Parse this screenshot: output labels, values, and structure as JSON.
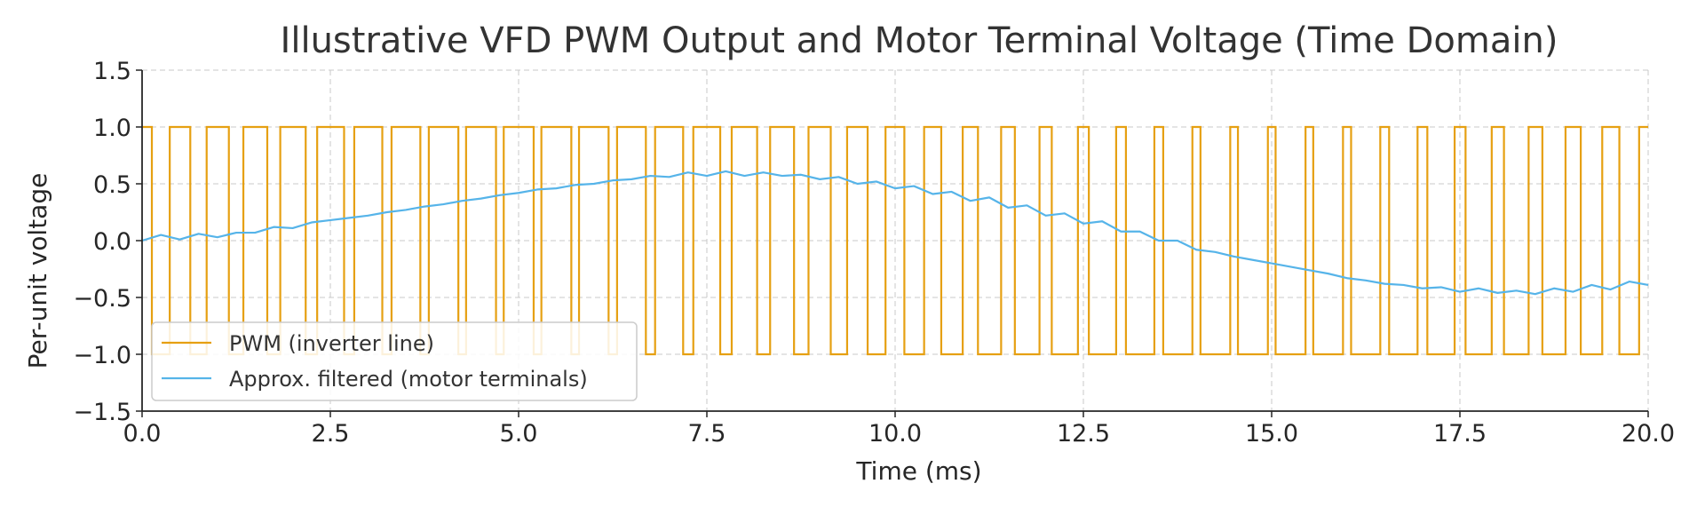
{
  "chart_data": {
    "type": "line",
    "title": "Illustrative VFD PWM Output and Motor Terminal Voltage (Time Domain)",
    "xlabel": "Time (ms)",
    "ylabel": "Per-unit voltage",
    "xlim": [
      0,
      20
    ],
    "ylim": [
      -1.5,
      1.5
    ],
    "x_ticks": [
      "0.0",
      "2.5",
      "5.0",
      "7.5",
      "10.0",
      "12.5",
      "15.0",
      "17.5",
      "20.0"
    ],
    "y_ticks": [
      "1.5",
      "1.0",
      "0.5",
      "0.0",
      "−0.5",
      "−1.0",
      "−1.5"
    ],
    "grid": true,
    "legend_position": "lower-left",
    "series": [
      {
        "name": "PWM (inverter line)",
        "color": "#E6A012",
        "style": "step",
        "carrier_period_ms": 0.5,
        "modulation_index": 0.6,
        "fundamental_hz": 50,
        "levels": [
          -1.0,
          1.0
        ]
      },
      {
        "name": "Approx. filtered (motor terminals)",
        "color": "#56B4E9",
        "x": [
          0.0,
          0.25,
          0.5,
          0.75,
          1.0,
          1.25,
          1.5,
          1.75,
          2.0,
          2.25,
          2.5,
          2.75,
          3.0,
          3.25,
          3.5,
          3.75,
          4.0,
          4.25,
          4.5,
          4.75,
          5.0,
          5.25,
          5.5,
          5.75,
          6.0,
          6.25,
          6.5,
          6.75,
          7.0,
          7.25,
          7.5,
          7.75,
          8.0,
          8.25,
          8.5,
          8.75,
          9.0,
          9.25,
          9.5,
          9.75,
          10.0,
          10.25,
          10.5,
          10.75,
          11.0,
          11.25,
          11.5,
          11.75,
          12.0,
          12.25,
          12.5,
          12.75,
          13.0,
          13.25,
          13.5,
          13.75,
          14.0,
          14.25,
          14.5,
          14.75,
          15.0,
          15.25,
          15.5,
          15.75,
          16.0,
          16.25,
          16.5,
          16.75,
          17.0,
          17.25,
          17.5,
          17.75,
          18.0,
          18.25,
          18.5,
          18.75,
          19.0,
          19.25,
          19.5,
          19.75,
          20.0
        ],
        "values": [
          0.0,
          0.05,
          0.01,
          0.06,
          0.03,
          0.07,
          0.07,
          0.12,
          0.11,
          0.16,
          0.18,
          0.2,
          0.22,
          0.25,
          0.27,
          0.3,
          0.32,
          0.35,
          0.37,
          0.4,
          0.42,
          0.45,
          0.46,
          0.49,
          0.5,
          0.53,
          0.54,
          0.57,
          0.56,
          0.6,
          0.57,
          0.61,
          0.57,
          0.6,
          0.57,
          0.58,
          0.54,
          0.56,
          0.5,
          0.52,
          0.46,
          0.48,
          0.41,
          0.43,
          0.35,
          0.38,
          0.29,
          0.31,
          0.22,
          0.24,
          0.15,
          0.17,
          0.08,
          0.08,
          0.0,
          0.0,
          -0.08,
          -0.1,
          -0.14,
          -0.17,
          -0.2,
          -0.23,
          -0.26,
          -0.29,
          -0.33,
          -0.35,
          -0.38,
          -0.39,
          -0.42,
          -0.41,
          -0.45,
          -0.42,
          -0.46,
          -0.44,
          -0.47,
          -0.42,
          -0.45,
          -0.39,
          -0.43,
          -0.36,
          -0.39
        ]
      }
    ]
  }
}
